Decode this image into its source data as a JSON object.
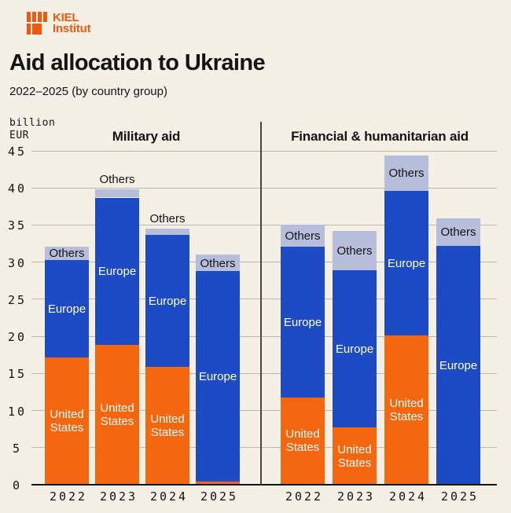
{
  "header": {
    "logo": {
      "line1": "KIEL",
      "line2": "Institut"
    },
    "title": "Aid allocation to Ukraine",
    "subtitle": "2022–2025 (by country group)"
  },
  "chart_data": {
    "type": "bar",
    "stacked": true,
    "unit": {
      "line1": "billion",
      "line2": "EUR"
    },
    "ylim": [
      0,
      45
    ],
    "ytick_step": 5,
    "grid": true,
    "categories": [
      "2022",
      "2023",
      "2024",
      "2025"
    ],
    "series_names": {
      "united_states": "United States",
      "europe": "Europe",
      "others": "Others"
    },
    "colors": {
      "united_states": "#F4670E",
      "europe": "#1C4BC5",
      "others": "#B7BEDB",
      "background": "#F5F0E6",
      "text": "#141414",
      "logo_orange": "#F2570E",
      "gridline": "#BDB7A9"
    },
    "panels": [
      {
        "title": "Military aid",
        "bars": [
          {
            "year": "2022",
            "united_states": 17.2,
            "europe": 13.1,
            "others": 1.8,
            "others_label_position": "inside",
            "show_us_label": true
          },
          {
            "year": "2023",
            "united_states": 18.8,
            "europe": 19.9,
            "others": 1.1,
            "others_label_position": "above",
            "show_us_label": true
          },
          {
            "year": "2024",
            "united_states": 15.9,
            "europe": 17.8,
            "others": 0.8,
            "others_label_position": "above",
            "show_us_label": true
          },
          {
            "year": "2025",
            "united_states": 0.4,
            "europe": 28.4,
            "others": 2.2,
            "others_label_position": "inside",
            "show_us_label": false
          }
        ]
      },
      {
        "title": "Financial & humanitarian aid",
        "bars": [
          {
            "year": "2022",
            "united_states": 11.8,
            "europe": 20.3,
            "others": 3.0,
            "others_label_position": "inside",
            "show_us_label": true
          },
          {
            "year": "2023",
            "united_states": 7.7,
            "europe": 21.2,
            "others": 5.3,
            "others_label_position": "inside",
            "show_us_label": true
          },
          {
            "year": "2024",
            "united_states": 20.1,
            "europe": 19.5,
            "others": 4.8,
            "others_label_position": "inside",
            "show_us_label": true
          },
          {
            "year": "2025",
            "united_states": 0,
            "europe": 32.2,
            "others": 3.7,
            "others_label_position": "inside",
            "show_us_label": false
          }
        ]
      }
    ]
  }
}
